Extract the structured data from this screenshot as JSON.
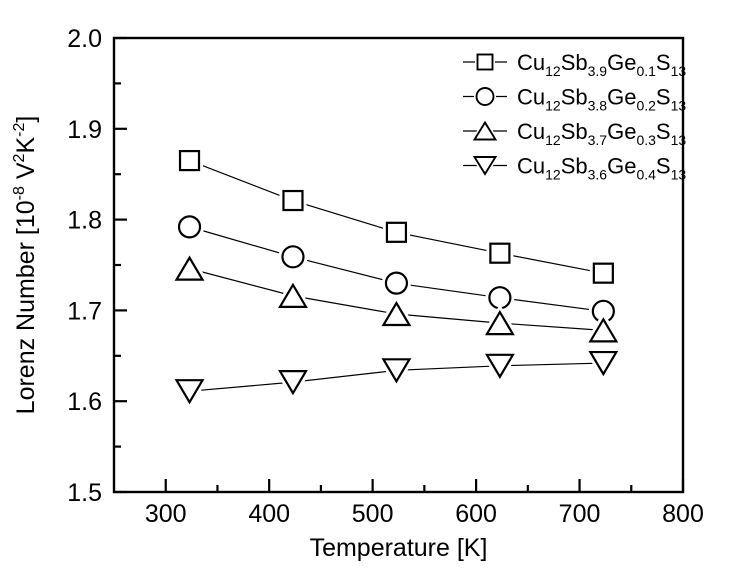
{
  "chart_data": {
    "type": "line",
    "title": "",
    "xlabel": "Temperature [K]",
    "ylabel": "Lorenz Number [10^-8 V^2K^-2]",
    "ylabel_parts": [
      [
        "Lorenz Number [10",
        0
      ],
      [
        "-8",
        2
      ],
      [
        " V",
        0
      ],
      [
        "2",
        2
      ],
      [
        "K",
        0
      ],
      [
        "-2",
        2
      ],
      [
        "]",
        0
      ]
    ],
    "xlim": [
      250,
      800
    ],
    "ylim": [
      1.5,
      2.0
    ],
    "x_major_ticks": [
      300,
      400,
      500,
      600,
      700,
      800
    ],
    "x_minor_ticks": [
      350,
      450,
      550,
      650,
      750
    ],
    "x_tick_labels": [
      "300",
      "400",
      "500",
      "600",
      "700",
      "800"
    ],
    "y_major_ticks": [
      1.5,
      1.6,
      1.7,
      1.8,
      1.9,
      2.0
    ],
    "y_minor_ticks": [
      1.55,
      1.65,
      1.75,
      1.85,
      1.95
    ],
    "y_tick_labels": [
      "1.5",
      "1.6",
      "1.7",
      "1.8",
      "1.9",
      "2.0"
    ],
    "grid": false,
    "legend_position": "top-right-inside",
    "x": [
      323,
      423,
      523,
      623,
      723
    ],
    "series": [
      {
        "name": "Cu12Sb3.9Ge0.1S13",
        "marker": "square",
        "values": [
          1.865,
          1.821,
          1.786,
          1.763,
          1.741
        ],
        "label_parts": [
          [
            "Cu",
            0
          ],
          [
            "12",
            1
          ],
          [
            "Sb",
            0
          ],
          [
            "3.9",
            1
          ],
          [
            "Ge",
            0
          ],
          [
            "0.1",
            1
          ],
          [
            "S",
            0
          ],
          [
            "13",
            1
          ]
        ]
      },
      {
        "name": "Cu12Sb3.8Ge0.2S13",
        "marker": "circle",
        "values": [
          1.792,
          1.759,
          1.73,
          1.714,
          1.699
        ],
        "label_parts": [
          [
            "Cu",
            0
          ],
          [
            "12",
            1
          ],
          [
            "Sb",
            0
          ],
          [
            "3.8",
            1
          ],
          [
            "Ge",
            0
          ],
          [
            "0.2",
            1
          ],
          [
            "S",
            0
          ],
          [
            "13",
            1
          ]
        ]
      },
      {
        "name": "Cu12Sb3.7Ge0.3S13",
        "marker": "triangle-up",
        "values": [
          1.746,
          1.716,
          1.696,
          1.686,
          1.678
        ],
        "label_parts": [
          [
            "Cu",
            0
          ],
          [
            "12",
            1
          ],
          [
            "Sb",
            0
          ],
          [
            "3.7",
            1
          ],
          [
            "Ge",
            0
          ],
          [
            "0.3",
            1
          ],
          [
            "S",
            0
          ],
          [
            "13",
            1
          ]
        ]
      },
      {
        "name": "Cu12Sb3.6Ge0.4S13",
        "marker": "triangle-down",
        "values": [
          1.611,
          1.621,
          1.634,
          1.639,
          1.642
        ],
        "label_parts": [
          [
            "Cu",
            0
          ],
          [
            "12",
            1
          ],
          [
            "Sb",
            0
          ],
          [
            "3.6",
            1
          ],
          [
            "Ge",
            0
          ],
          [
            "0.4",
            1
          ],
          [
            "S",
            0
          ],
          [
            "13",
            1
          ]
        ]
      }
    ],
    "colors": {
      "foreground": "#000000",
      "background": "#ffffff"
    }
  }
}
